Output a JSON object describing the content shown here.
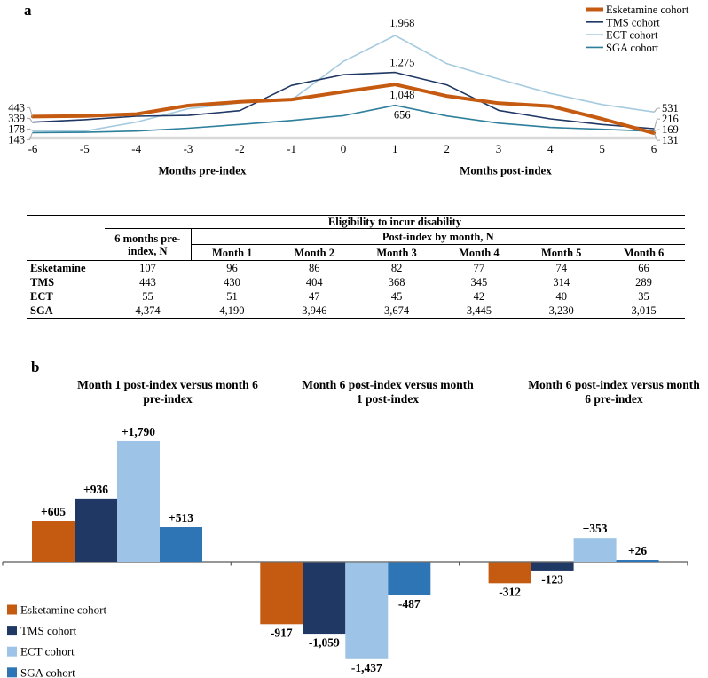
{
  "panel_a": {
    "label": "a"
  },
  "panel_b": {
    "label": "b"
  },
  "colors": {
    "esketamine": "#C55A11",
    "tms": "#1F3864",
    "ect_line": "#A6CBDF",
    "sga_line": "#2E7F9B",
    "ect_bar": "#9DC3E6",
    "sga_bar": "#2E75B6",
    "axis_gray": "#D9D9D9",
    "leader_gray": "#A6A6A6",
    "bar_axis": "#595959"
  },
  "chart_data": [
    {
      "id": "monthly-trend-line-chart",
      "type": "line",
      "x": [
        -6,
        -5,
        -4,
        -3,
        -2,
        -1,
        0,
        1,
        2,
        3,
        4,
        5,
        6
      ],
      "xlabel_pre": "Months pre-index",
      "xlabel_post": "Months post-index",
      "ylim": [
        0,
        2100
      ],
      "grid": false,
      "legend_position": "top-right",
      "series": [
        {
          "name": "Esketamine cohort",
          "color": "#C55A11",
          "line_width": 4,
          "values": [
            443,
            455,
            490,
            650,
            720,
            765,
            910,
            1048,
            830,
            695,
            640,
            400,
            131
          ],
          "first_label": "443",
          "peak_label": "1,048",
          "last_label": "131"
        },
        {
          "name": "TMS cohort",
          "color": "#1F3864",
          "line_width": 1.6,
          "values": [
            339,
            385,
            450,
            465,
            555,
            1030,
            1230,
            1275,
            1040,
            560,
            400,
            295,
            216
          ],
          "first_label": "339",
          "peak_label": "1,275",
          "last_label": "216"
        },
        {
          "name": "ECT cohort",
          "color": "#A6CBDF",
          "line_width": 1.6,
          "values": [
            178,
            170,
            340,
            590,
            700,
            755,
            1480,
            1968,
            1440,
            1150,
            880,
            670,
            531
          ],
          "first_label": "178",
          "peak_label": "1,968",
          "last_label": "531"
        },
        {
          "name": "SGA cohort",
          "color": "#2E7F9B",
          "line_width": 1.6,
          "values": [
            143,
            148,
            172,
            225,
            295,
            370,
            460,
            656,
            455,
            320,
            240,
            205,
            169
          ],
          "first_label": "143",
          "peak_label": "656",
          "last_label": "169"
        }
      ]
    },
    {
      "id": "change-bar-chart",
      "type": "bar",
      "series_names": [
        "Esketamine cohort",
        "TMS cohort",
        "ECT cohort",
        "SGA cohort"
      ],
      "series_colors": [
        "#C55A11",
        "#1F3864",
        "#9DC3E6",
        "#2E75B6"
      ],
      "groups": [
        {
          "title_line1": "Month 1 post-index versus month 6",
          "title_line2": "pre-index",
          "values": [
            605,
            936,
            1790,
            513
          ],
          "labels": [
            "+605",
            "+936",
            "+1,790",
            "+513"
          ]
        },
        {
          "title_line1": "Month 6 post-index versus month",
          "title_line2": "1 post-index",
          "values": [
            -917,
            -1059,
            -1437,
            -487
          ],
          "labels": [
            "-917",
            "-1,059",
            "-1,437",
            "-487"
          ]
        },
        {
          "title_line1": "Month 6 post-index versus month",
          "title_line2": "6 pre-index",
          "values": [
            -312,
            -123,
            353,
            26
          ],
          "labels": [
            "-312",
            "-123",
            "+353",
            "+26"
          ]
        }
      ]
    }
  ],
  "table": {
    "top_header": "Eligibility to incur disability",
    "pre_header": "6 months pre-index, N",
    "post_header": "Post-index by month, N",
    "month_headers": [
      "Month 1",
      "Month 2",
      "Month 3",
      "Month 4",
      "Month 5",
      "Month 6"
    ],
    "rows": [
      {
        "label": "Esketamine",
        "values": [
          "107",
          "96",
          "86",
          "82",
          "77",
          "74",
          "66"
        ]
      },
      {
        "label": "TMS",
        "values": [
          "443",
          "430",
          "404",
          "368",
          "345",
          "314",
          "289"
        ]
      },
      {
        "label": "ECT",
        "values": [
          "55",
          "51",
          "47",
          "45",
          "42",
          "40",
          "35"
        ]
      },
      {
        "label": "SGA",
        "values": [
          "4,374",
          "4,190",
          "3,946",
          "3,674",
          "3,445",
          "3,230",
          "3,015"
        ]
      }
    ]
  }
}
